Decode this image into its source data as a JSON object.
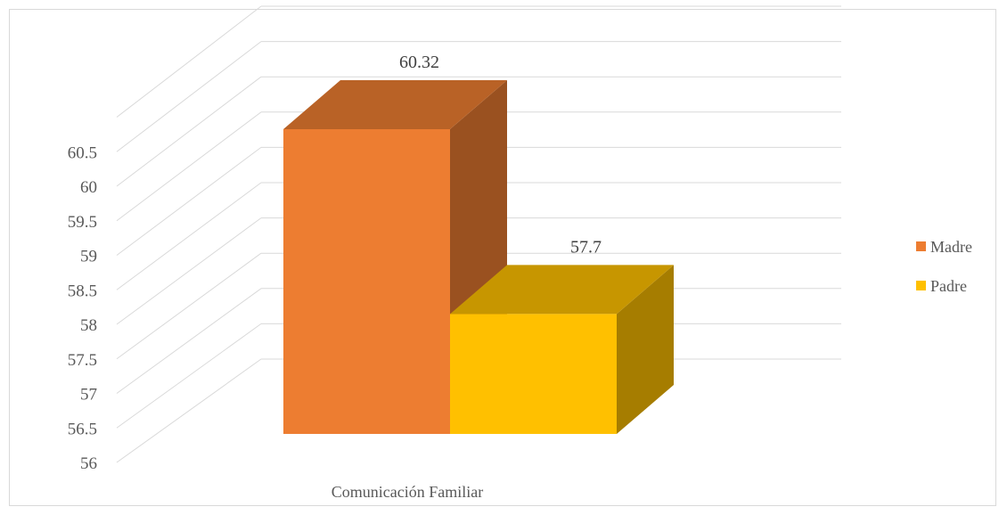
{
  "chart_data": {
    "type": "bar",
    "categories": [
      "Comunicación Familiar"
    ],
    "series": [
      {
        "name": "Madre",
        "values": [
          60.32
        ],
        "color": "#ED7D31"
      },
      {
        "name": "Padre",
        "values": [
          57.7
        ],
        "color": "#FFC000"
      }
    ],
    "data_labels": [
      "60.32",
      "57.7"
    ],
    "ylim": [
      56,
      60.5
    ],
    "y_ticks": [
      "56",
      "56.5",
      "57",
      "57.5",
      "58",
      "58.5",
      "59",
      "59.5",
      "60",
      "60.5"
    ],
    "title": "",
    "xlabel": "",
    "ylabel": "",
    "grid": true,
    "legend_position": "right",
    "style": "3d-column"
  }
}
